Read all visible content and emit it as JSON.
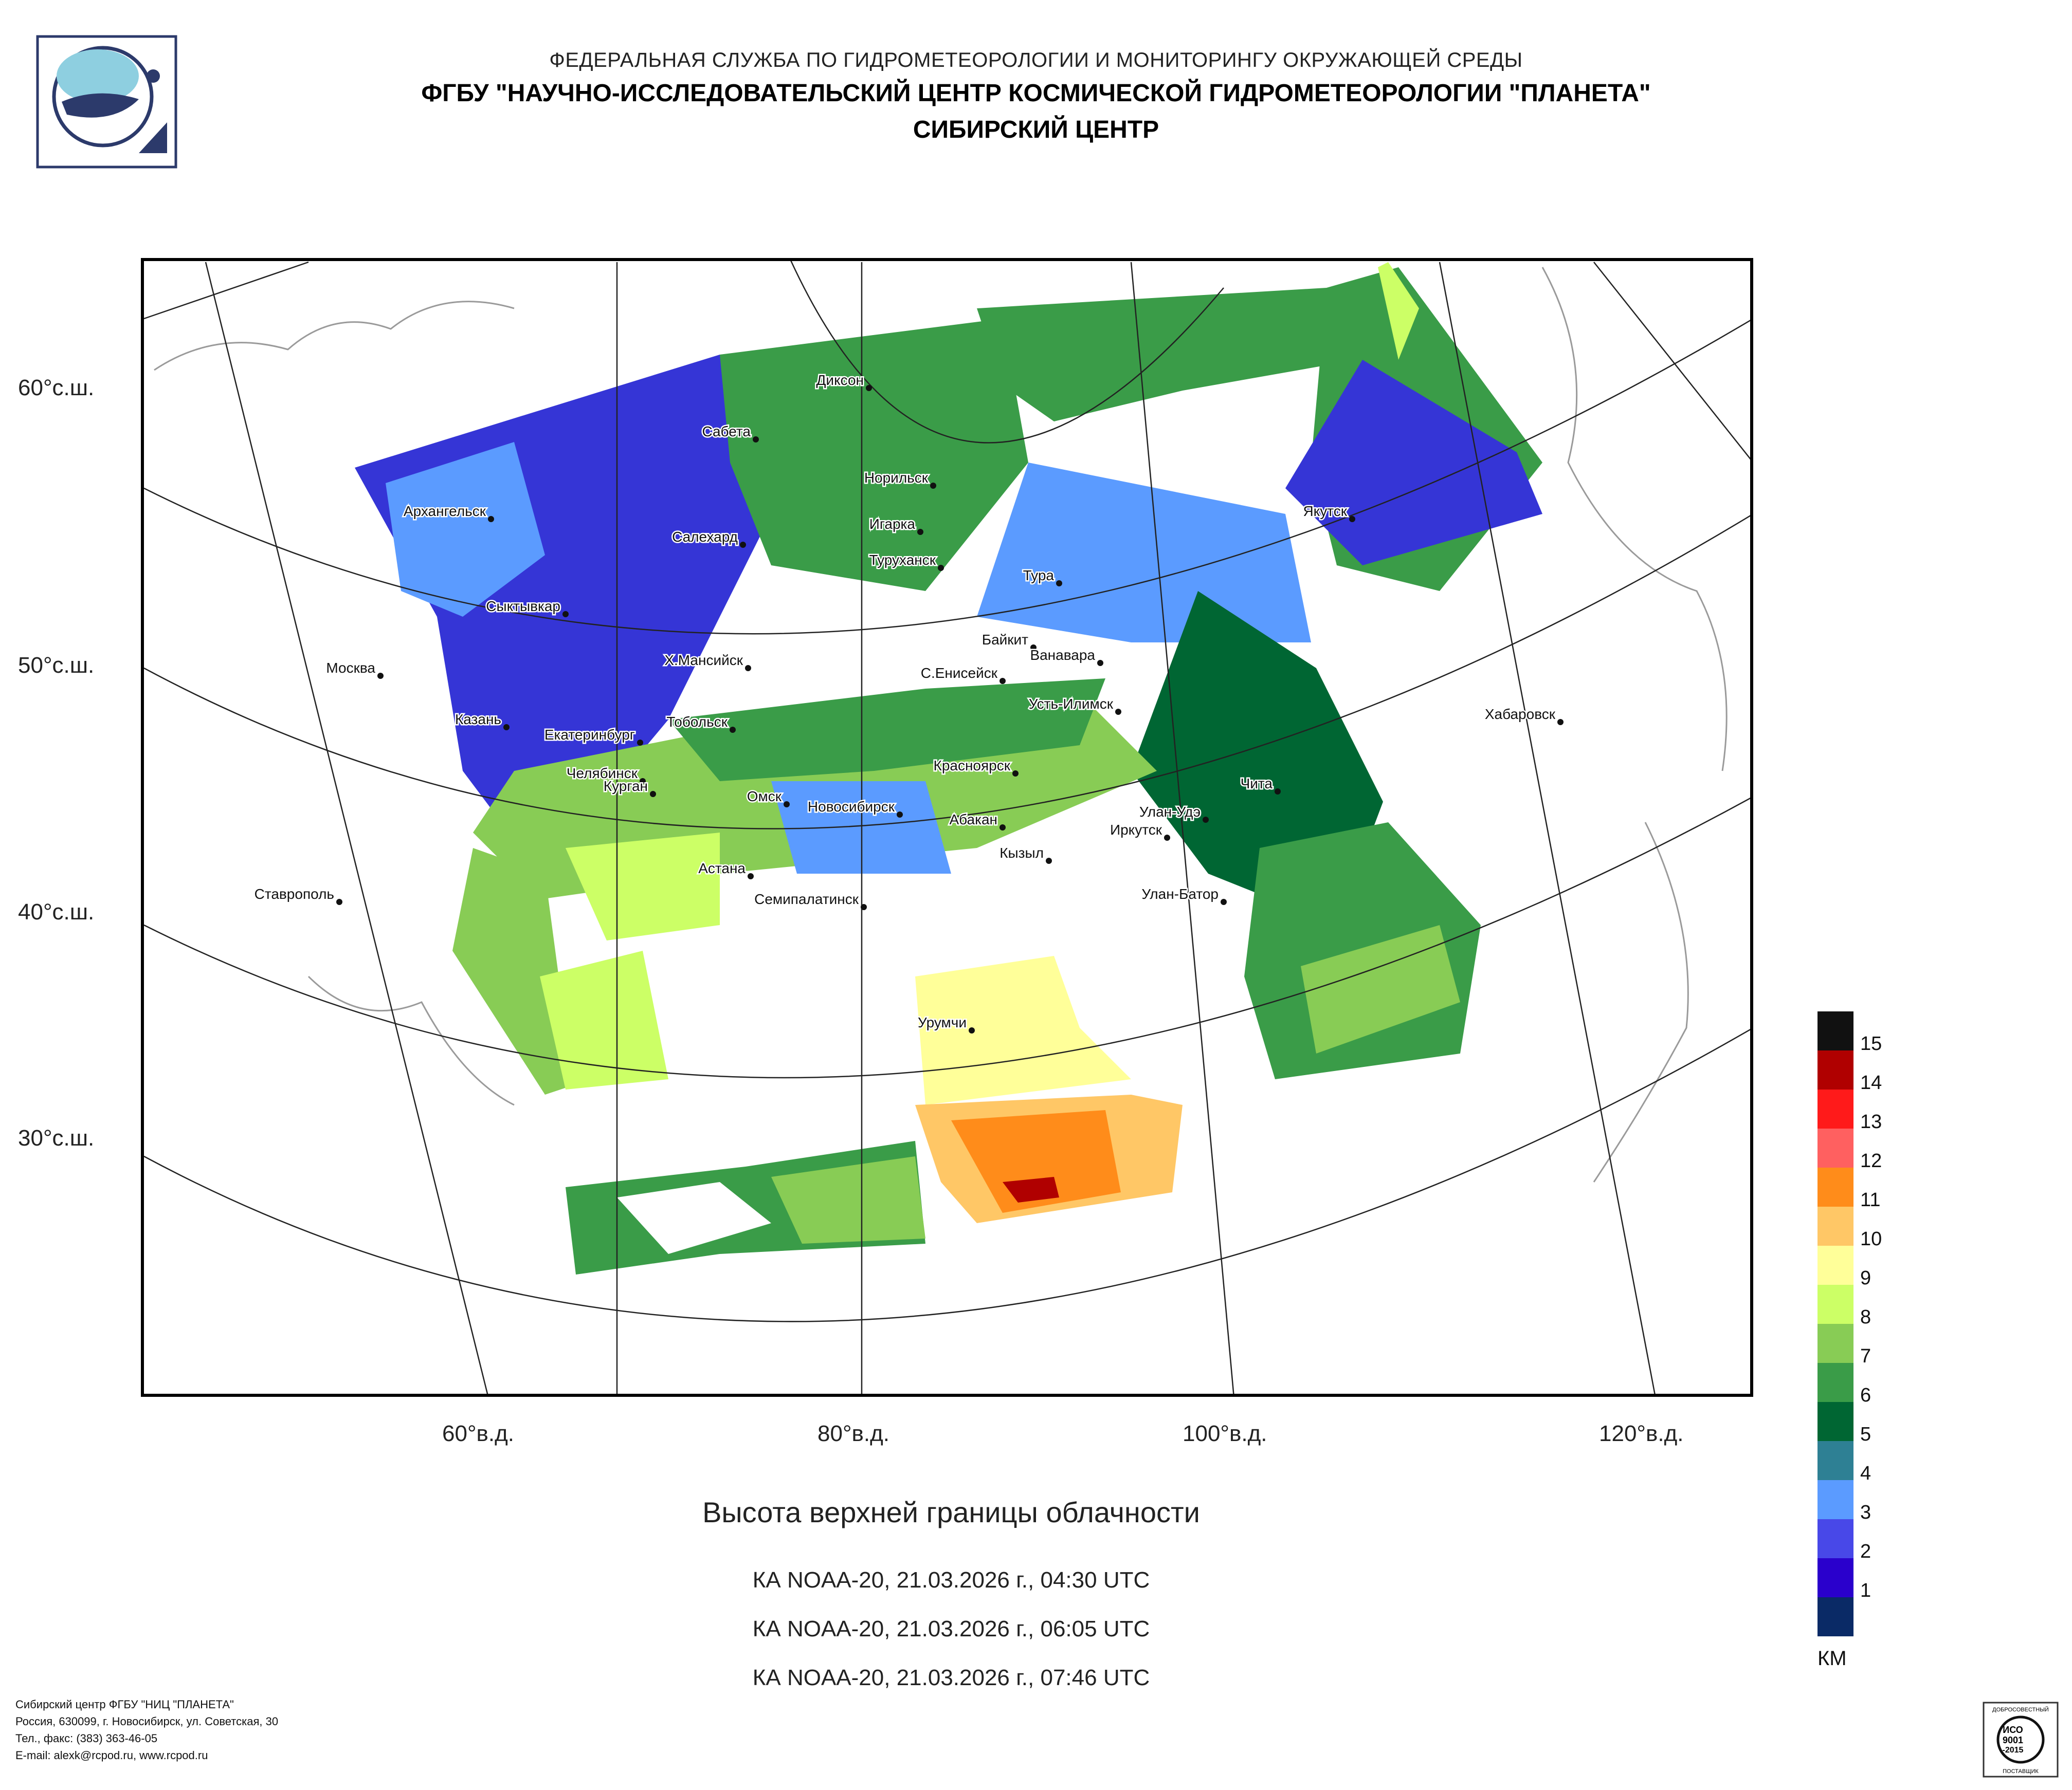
{
  "header": {
    "line1": "ФЕДЕРАЛЬНАЯ СЛУЖБА ПО ГИДРОМЕТЕОРОЛОГИИ И МОНИТОРИНГУ ОКРУЖАЮЩЕЙ СРЕДЫ",
    "line2": "ФГБУ \"НАУЧНО-ИССЛЕДОВАТЕЛЬСКИЙ ЦЕНТР КОСМИЧЕСКОЙ ГИДРОМЕТЕОРОЛОГИИ \"ПЛАНЕТА\"",
    "line3": "СИБИРСКИЙ ЦЕНТР"
  },
  "map": {
    "lat_labels": [
      "60°с.ш.",
      "50°с.ш.",
      "40°с.ш.",
      "30°с.ш."
    ],
    "lon_labels": [
      "60°в.д.",
      "80°в.д.",
      "100°в.д.",
      "120°в.д."
    ],
    "cities": [
      {
        "name": "Диксон"
      },
      {
        "name": "Сабета"
      },
      {
        "name": "Норильск"
      },
      {
        "name": "Игарка"
      },
      {
        "name": "Архангельск"
      },
      {
        "name": "Салехард"
      },
      {
        "name": "Туруханск"
      },
      {
        "name": "Тура"
      },
      {
        "name": "Якутск"
      },
      {
        "name": "Сыктывкар"
      },
      {
        "name": "Байкит"
      },
      {
        "name": "Ванавара"
      },
      {
        "name": "Москва"
      },
      {
        "name": "Х.Мансийск"
      },
      {
        "name": "С.Енисейск"
      },
      {
        "name": "Усть-Илимск"
      },
      {
        "name": "Хабаровск"
      },
      {
        "name": "Казань"
      },
      {
        "name": "Тобольск"
      },
      {
        "name": "Екатеринбург"
      },
      {
        "name": "Красноярск"
      },
      {
        "name": "Челябинск"
      },
      {
        "name": "Курган"
      },
      {
        "name": "Чита"
      },
      {
        "name": "Омск"
      },
      {
        "name": "Новосибирск"
      },
      {
        "name": "Абакан"
      },
      {
        "name": "Улан-Удэ"
      },
      {
        "name": "Иркутск"
      },
      {
        "name": "Кызыл"
      },
      {
        "name": "Астана"
      },
      {
        "name": "Ставрополь"
      },
      {
        "name": "Семипалатинск"
      },
      {
        "name": "Улан-Батор"
      },
      {
        "name": "Урумчи"
      }
    ]
  },
  "title": "Высота верхней границы облачности",
  "passes": [
    "КА NOAA-20, 21.03.2026 г., 04:30 UTC",
    "КА NOAA-20, 21.03.2026 г., 06:05 UTC",
    "КА NOAA-20, 21.03.2026 г., 07:46 UTC"
  ],
  "legend": {
    "units": "КМ",
    "colors": [
      "#111111",
      "#b00000",
      "#ff1a1a",
      "#ff6060",
      "#ff8c1a",
      "#ffc766",
      "#ffff99",
      "#ccff66",
      "#88cc55",
      "#3a9c48",
      "#006633",
      "#2e8094",
      "#5b9bff",
      "#4848e8",
      "#2a00cc",
      "#0a2a66"
    ],
    "labels": [
      "15",
      "14",
      "13",
      "12",
      "11",
      "10",
      "9",
      "8",
      "7",
      "6",
      "5",
      "4",
      "3",
      "2",
      "1"
    ]
  },
  "footer": {
    "line1": "Сибирский центр ФГБУ \"НИЦ \"ПЛАНЕТА\"",
    "line2": "Россия, 630099, г. Новосибирск, ул. Советская, 30",
    "line3": "Тел., факс: (383) 363-46-05",
    "line4": "E-mail: alexk@rcpod.ru, www.rcpod.ru"
  },
  "badge": {
    "top": "ДОБРОСОВЕСТНЫЙ",
    "iso": "ИСО",
    "num": "9001",
    "year": "-2015",
    "bottom": "ПОСТАВЩИК"
  }
}
